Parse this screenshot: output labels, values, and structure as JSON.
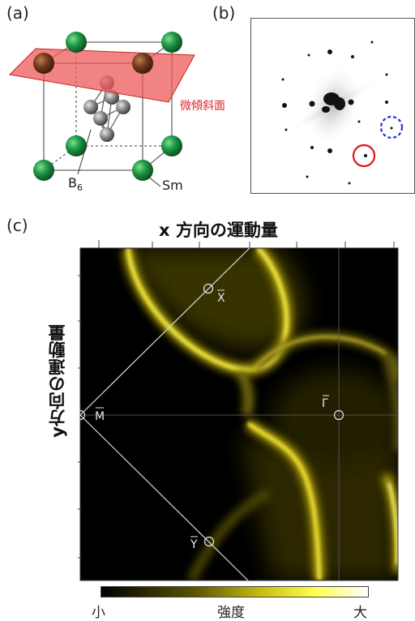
{
  "panels": {
    "a": "(a)",
    "b": "(b)",
    "c": "(c)"
  },
  "crystal": {
    "plane_label": "微傾斜面",
    "boron_label": "B",
    "boron_sub": "6",
    "sm_label": "Sm",
    "colors": {
      "plane": "#ec5a5a",
      "plane_edge": "#cc2222",
      "sm_atom": "#1a8a3a",
      "b_atom": "#8a8a8a"
    }
  },
  "diffraction": {
    "colors": {
      "solid_circle": "#e0141c",
      "dashed_circle": "#2030d0"
    }
  },
  "arpes": {
    "x_title": "x 方向の運動量",
    "y_title": "y方向の運動量",
    "points": {
      "X": "X",
      "M": "M",
      "Gamma": "Γ",
      "Y": "Y"
    },
    "colorbar": {
      "low": "小",
      "mid": "強度",
      "high": "大"
    },
    "colors": {
      "dark": "#000000",
      "mid": "#8a8000",
      "bright": "#ffff40",
      "max": "#ffffff"
    }
  }
}
